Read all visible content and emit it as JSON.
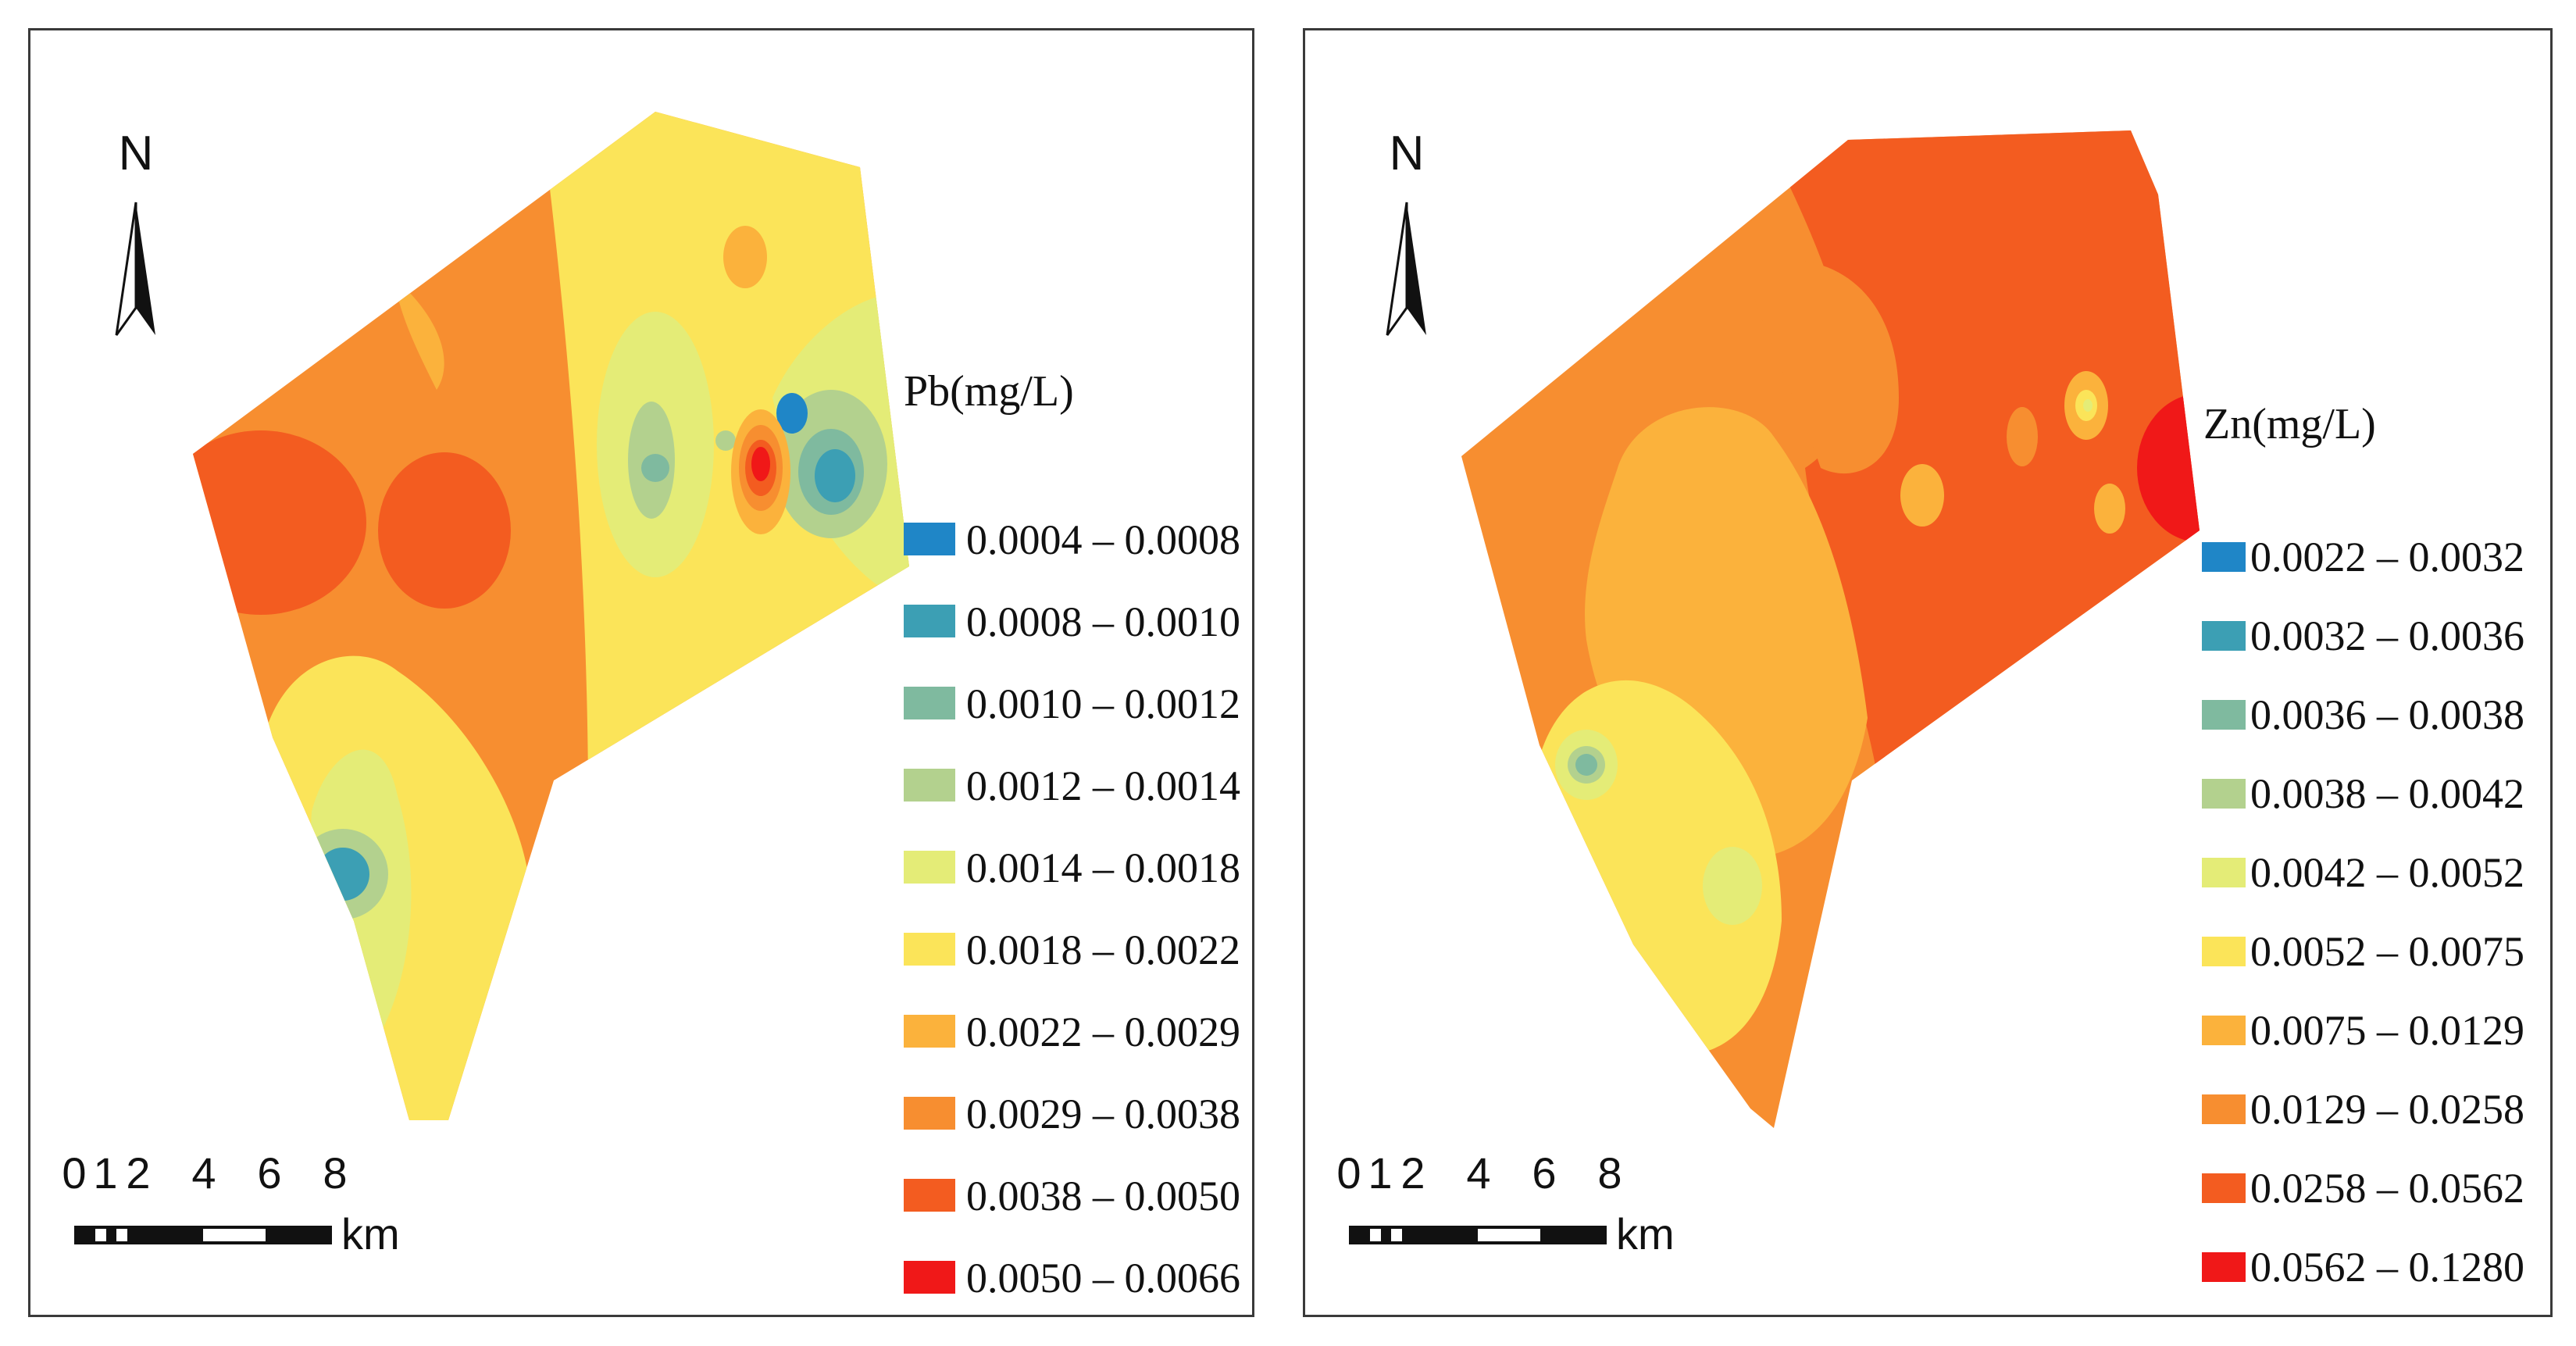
{
  "panels": [
    {
      "id": "pb",
      "north_label": "N",
      "legend": {
        "title": "Pb(mg/L)",
        "classes": [
          {
            "label": "0.0004 – 0.0008",
            "color": "#1f86c7"
          },
          {
            "label": "0.0008 – 0.0010",
            "color": "#3c9fb4"
          },
          {
            "label": "0.0010 – 0.0012",
            "color": "#7fba9f"
          },
          {
            "label": "0.0012 – 0.0014",
            "color": "#b3d18e"
          },
          {
            "label": "0.0014 – 0.0018",
            "color": "#e4ec77"
          },
          {
            "label": "0.0018 – 0.0022",
            "color": "#fbe459"
          },
          {
            "label": "0.0022 – 0.0029",
            "color": "#fbb23c"
          },
          {
            "label": "0.0029 – 0.0038",
            "color": "#f78e30"
          },
          {
            "label": "0.0038 – 0.0050",
            "color": "#f35c20"
          },
          {
            "label": "0.0050 – 0.0066",
            "color": "#f01818"
          }
        ]
      },
      "scale_bar": {
        "ticks": [
          "0",
          "1",
          "2",
          "4",
          "6",
          "8"
        ],
        "unit": "km"
      }
    },
    {
      "id": "zn",
      "north_label": "N",
      "legend": {
        "title": "Zn(mg/L)",
        "classes": [
          {
            "label": "0.0022 – 0.0032",
            "color": "#1f86c7"
          },
          {
            "label": "0.0032 – 0.0036",
            "color": "#3c9fb4"
          },
          {
            "label": "0.0036 – 0.0038",
            "color": "#7fba9f"
          },
          {
            "label": "0.0038 – 0.0042",
            "color": "#b3d18e"
          },
          {
            "label": "0.0042 – 0.0052",
            "color": "#e4ec77"
          },
          {
            "label": "0.0052 – 0.0075",
            "color": "#fbe459"
          },
          {
            "label": "0.0075 – 0.0129",
            "color": "#fbb23c"
          },
          {
            "label": "0.0129 – 0.0258",
            "color": "#f78e30"
          },
          {
            "label": "0.0258 – 0.0562",
            "color": "#f35c20"
          },
          {
            "label": "0.0562 – 0.1280",
            "color": "#f01818"
          }
        ]
      },
      "scale_bar": {
        "ticks": [
          "0",
          "1",
          "2",
          "4",
          "6",
          "8"
        ],
        "unit": "km"
      }
    }
  ]
}
